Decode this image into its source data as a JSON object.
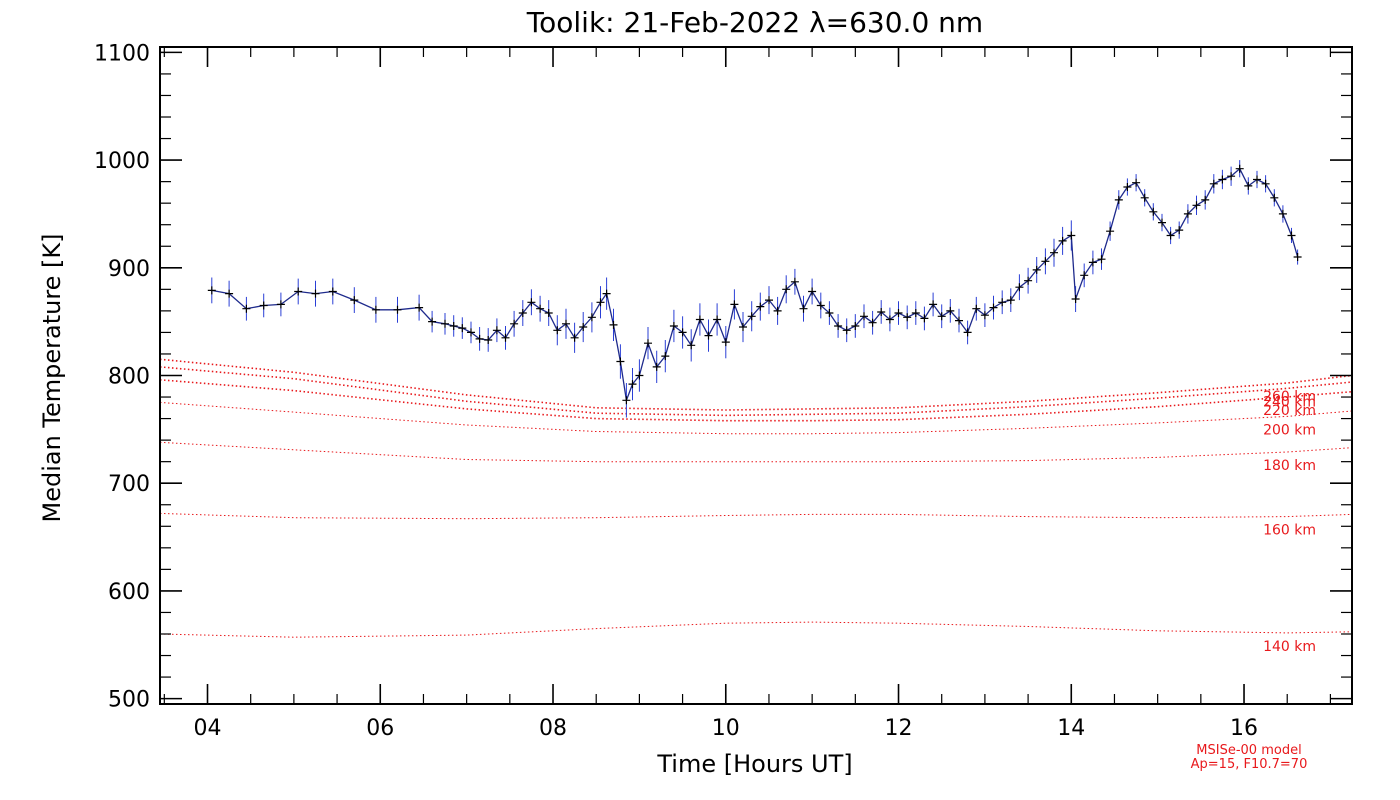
{
  "chart_data": {
    "type": "line",
    "title": "Toolik: 21-Feb-2022 λ=630.0 nm",
    "xlabel": "Time [Hours UT]",
    "ylabel": "Median Temperature [K]",
    "xlim": [
      3.45,
      17.25
    ],
    "ylim": [
      495,
      1105
    ],
    "x_ticks": [
      4,
      6,
      8,
      10,
      12,
      14,
      16
    ],
    "x_tick_labels": [
      "04",
      "06",
      "08",
      "10",
      "12",
      "14",
      "16"
    ],
    "y_ticks": [
      500,
      600,
      700,
      800,
      900,
      1000,
      1100
    ],
    "y_tick_labels": [
      "500",
      "600",
      "700",
      "800",
      "900",
      "1000",
      "1100"
    ],
    "grid": false,
    "series": [
      {
        "color": "#2a3fd6",
        "marker": "plus",
        "x": [
          4.05,
          4.25,
          4.45,
          4.65,
          4.85,
          5.05,
          5.25,
          5.45,
          5.7,
          5.95,
          6.2,
          6.45,
          6.6,
          6.75,
          6.85,
          6.95,
          7.05,
          7.15,
          7.25,
          7.35,
          7.45,
          7.55,
          7.65,
          7.75,
          7.85,
          7.95,
          8.05,
          8.15,
          8.25,
          8.35,
          8.45,
          8.55,
          8.62,
          8.7,
          8.78,
          8.85,
          8.92,
          9.0,
          9.1,
          9.2,
          9.3,
          9.4,
          9.5,
          9.6,
          9.7,
          9.8,
          9.9,
          10.0,
          10.1,
          10.2,
          10.3,
          10.4,
          10.5,
          10.6,
          10.7,
          10.8,
          10.9,
          11.0,
          11.1,
          11.2,
          11.3,
          11.4,
          11.5,
          11.6,
          11.7,
          11.8,
          11.9,
          12.0,
          12.1,
          12.2,
          12.3,
          12.4,
          12.5,
          12.6,
          12.7,
          12.8,
          12.9,
          13.0,
          13.1,
          13.2,
          13.3,
          13.4,
          13.5,
          13.6,
          13.7,
          13.8,
          13.9,
          14.0,
          14.05,
          14.15,
          14.25,
          14.35,
          14.45,
          14.55,
          14.65,
          14.75,
          14.85,
          14.95,
          15.05,
          15.15,
          15.25,
          15.35,
          15.45,
          15.55,
          15.65,
          15.75,
          15.85,
          15.95,
          16.05,
          16.15,
          16.25,
          16.35,
          16.45,
          16.55,
          16.62
        ],
        "values": [
          879,
          876,
          862,
          865,
          866,
          878,
          876,
          878,
          870,
          861,
          861,
          863,
          850,
          848,
          846,
          844,
          840,
          834,
          833,
          842,
          835,
          848,
          858,
          868,
          862,
          858,
          842,
          848,
          835,
          845,
          854,
          868,
          876,
          847,
          813,
          777,
          792,
          800,
          830,
          808,
          818,
          846,
          840,
          828,
          852,
          837,
          852,
          831,
          866,
          845,
          855,
          864,
          870,
          860,
          880,
          887,
          862,
          878,
          865,
          858,
          846,
          842,
          846,
          855,
          849,
          859,
          852,
          858,
          854,
          858,
          853,
          866,
          855,
          860,
          851,
          840,
          862,
          856,
          863,
          868,
          870,
          882,
          888,
          898,
          906,
          914,
          925,
          930,
          871,
          893,
          905,
          908,
          934,
          963,
          975,
          979,
          965,
          952,
          942,
          930,
          935,
          950,
          958,
          963,
          978,
          982,
          985,
          992,
          976,
          982,
          978,
          965,
          950,
          930,
          910
        ],
        "error": [
          12,
          12,
          11,
          11,
          11,
          12,
          12,
          12,
          12,
          12,
          12,
          12,
          10,
          10,
          10,
          10,
          10,
          11,
          11,
          11,
          11,
          12,
          12,
          12,
          12,
          12,
          14,
          14,
          14,
          14,
          14,
          15,
          15,
          15,
          16,
          16,
          15,
          15,
          15,
          15,
          15,
          15,
          15,
          15,
          15,
          15,
          15,
          15,
          14,
          14,
          14,
          13,
          13,
          13,
          13,
          12,
          12,
          12,
          12,
          11,
          11,
          11,
          11,
          11,
          11,
          11,
          11,
          11,
          11,
          11,
          11,
          11,
          11,
          11,
          11,
          11,
          11,
          11,
          11,
          11,
          11,
          12,
          12,
          12,
          12,
          13,
          13,
          14,
          12,
          11,
          11,
          10,
          9,
          9,
          8,
          8,
          8,
          8,
          8,
          8,
          8,
          9,
          9,
          9,
          9,
          9,
          9,
          8,
          8,
          8,
          8,
          8,
          8,
          7,
          7
        ]
      }
    ],
    "model_curves": {
      "color": "#e8191c",
      "x": [
        3.45,
        5.0,
        7.0,
        8.5,
        10.0,
        11.0,
        12.0,
        13.5,
        15.0,
        16.5,
        17.25
      ],
      "curves": [
        {
          "label": "260 km",
          "values": [
            815,
            803,
            782,
            770,
            768,
            769,
            770,
            776,
            784,
            793,
            800
          ]
        },
        {
          "label": "240 km",
          "values": [
            808,
            797,
            776,
            765,
            763,
            764,
            765,
            771,
            779,
            788,
            794
          ]
        },
        {
          "label": "220 km",
          "values": [
            796,
            786,
            769,
            760,
            758,
            758,
            759,
            764,
            771,
            780,
            785
          ]
        },
        {
          "label": "200 km",
          "values": [
            775,
            766,
            754,
            748,
            746,
            746,
            747,
            751,
            756,
            762,
            767
          ]
        },
        {
          "label": "180 km",
          "values": [
            738,
            731,
            722,
            720,
            720,
            720,
            720,
            721,
            724,
            729,
            733
          ]
        },
        {
          "label": "160 km",
          "values": [
            672,
            668,
            667,
            668,
            670,
            671,
            671,
            669,
            668,
            669,
            671
          ]
        },
        {
          "label": "140 km",
          "values": [
            560,
            557,
            559,
            565,
            570,
            571,
            570,
            567,
            563,
            561,
            562
          ]
        }
      ]
    },
    "annotations": [
      "MSISe-00 model",
      "Ap=15, F10.7=70"
    ]
  }
}
